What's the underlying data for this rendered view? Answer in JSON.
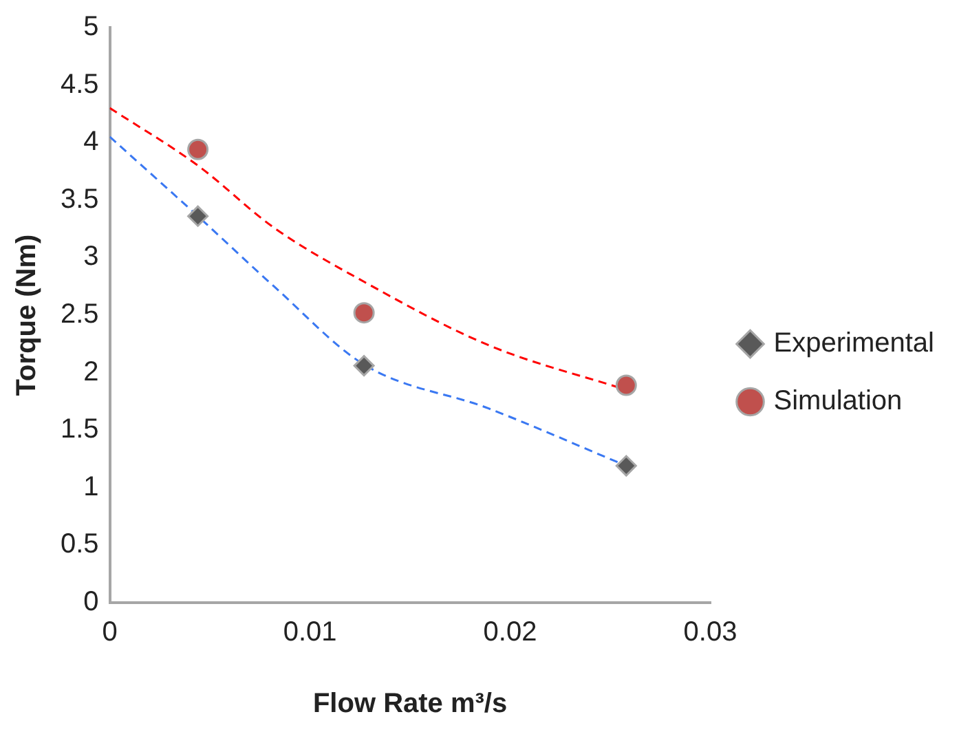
{
  "chart_data": {
    "type": "scatter",
    "xlabel": "Flow Rate m³/s",
    "ylabel": "Torque (Nm)",
    "xlim": [
      0,
      0.03
    ],
    "xticks": [
      0,
      0.01,
      0.02,
      0.03
    ],
    "ylim": [
      0,
      5
    ],
    "yticks": [
      0,
      0.5,
      1,
      1.5,
      2,
      2.5,
      3,
      3.5,
      4,
      4.5,
      5
    ],
    "grid": false,
    "legend": "right",
    "series": [
      {
        "name": "Experimental",
        "marker": "diamond",
        "color": "#595959",
        "x": [
          0.0044,
          0.0127,
          0.0258
        ],
        "values": [
          3.36,
          2.06,
          1.19
        ]
      },
      {
        "name": "Simulation",
        "marker": "circle",
        "color": "#c0504d",
        "x": [
          0.0044,
          0.0127,
          0.0258
        ],
        "values": [
          3.94,
          2.52,
          1.89
        ]
      },
      {
        "type": "line",
        "line_style": "dashed",
        "marker": "none",
        "color": "#3a78f2",
        "x": [
          0,
          0.0044,
          0.0082,
          0.0127,
          0.0189,
          0.0258
        ],
        "values": [
          4.05,
          3.36,
          2.75,
          2.07,
          1.69,
          1.19
        ]
      },
      {
        "type": "line",
        "line_style": "dashed",
        "marker": "none",
        "color": "#ff0000",
        "x": [
          0,
          0.0044,
          0.0082,
          0.0127,
          0.0189,
          0.0258
        ],
        "values": [
          4.3,
          3.8,
          3.26,
          2.79,
          2.24,
          1.85
        ]
      }
    ]
  }
}
